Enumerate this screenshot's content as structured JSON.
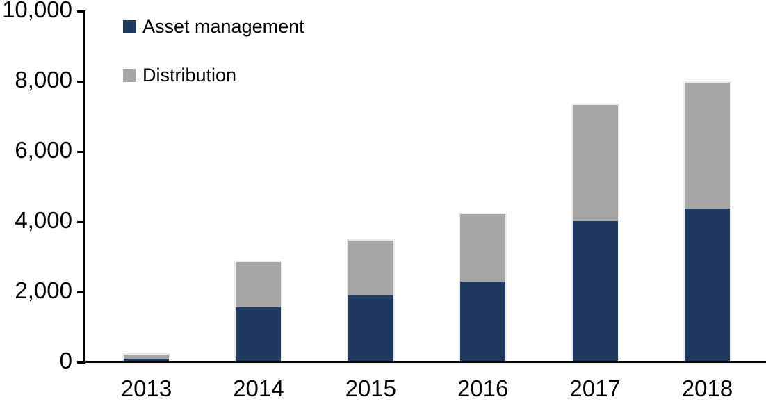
{
  "chart_data": {
    "type": "bar",
    "stacked": true,
    "title": "",
    "xlabel": "",
    "ylabel": "",
    "categories": [
      "2013",
      "2014",
      "2015",
      "2016",
      "2017",
      "2018"
    ],
    "series": [
      {
        "name": "Asset management",
        "color": "#1F3A5F",
        "values": [
          100,
          1560,
          1900,
          2300,
          4020,
          4380
        ]
      },
      {
        "name": "Distribution",
        "color": "#A6A6A6",
        "values": [
          110,
          1290,
          1570,
          1920,
          3310,
          3580
        ]
      }
    ],
    "totals": [
      210,
      2850,
      3470,
      4220,
      7330,
      7960
    ],
    "ylim": [
      0,
      10000
    ],
    "y_tick_step": 2000,
    "y_tick_values": [
      0,
      2000,
      4000,
      6000,
      8000,
      10000
    ],
    "y_tick_labels": [
      "0",
      "2,000",
      "4,000",
      "6,000",
      "8,000",
      "10,000"
    ],
    "grid": false,
    "legend_position": "top-left",
    "axis_color": "#000000",
    "background_color": "#FFFFFF"
  }
}
